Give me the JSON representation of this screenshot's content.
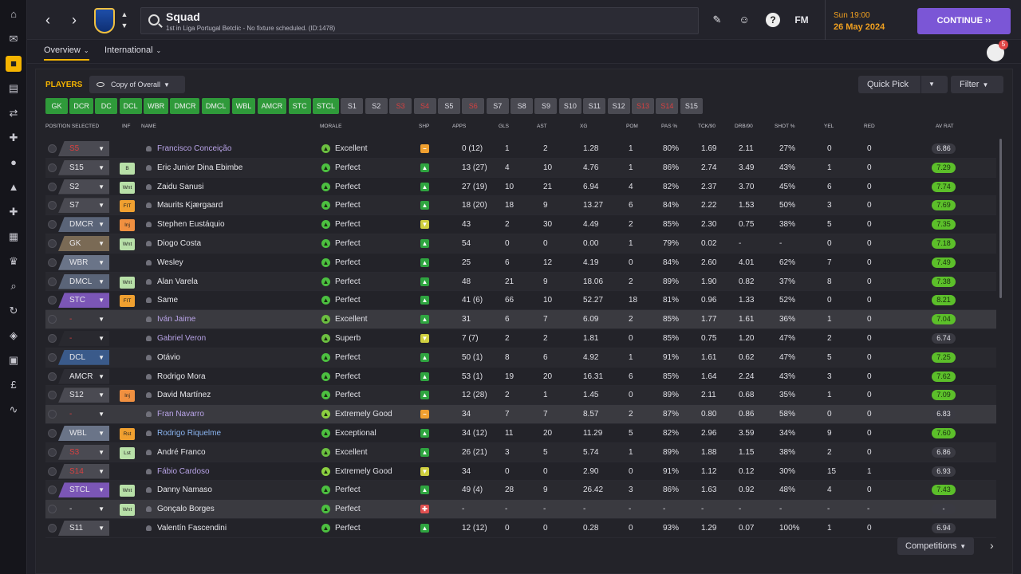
{
  "sidebar": {
    "items": [
      "home-icon",
      "inbox-icon",
      "club-icon",
      "clipboard-icon",
      "transfer-icon",
      "medical-icon",
      "ball-icon",
      "training-icon",
      "firstaid-icon",
      "calendar-icon",
      "trophy-icon",
      "search-icon",
      "refresh-icon",
      "shield-icon",
      "briefcase-icon",
      "finance-icon",
      "chart-icon"
    ]
  },
  "header": {
    "title": "Squad",
    "subtitle": "1st in Liga Portugal Betclic - No fixture scheduled. (ID:1478)",
    "date_time": "Sun 19:00",
    "date": "26 May 2024",
    "continue_label": "CONTINUE",
    "fm_label": "FM",
    "help_label": "?"
  },
  "tabs": {
    "overview": "Overview",
    "international": "International"
  },
  "notifications_count": "5",
  "panel": {
    "title": "PLAYERS",
    "view_select": "Copy of Overall",
    "quick_pick": "Quick Pick",
    "filter": "Filter"
  },
  "position_chips": [
    {
      "label": "GK",
      "state": "g"
    },
    {
      "label": "DCR",
      "state": "g"
    },
    {
      "label": "DC",
      "state": "g"
    },
    {
      "label": "DCL",
      "state": "g"
    },
    {
      "label": "WBR",
      "state": "g"
    },
    {
      "label": "DMCR",
      "state": "g"
    },
    {
      "label": "DMCL",
      "state": "g"
    },
    {
      "label": "WBL",
      "state": "g"
    },
    {
      "label": "AMCR",
      "state": "g"
    },
    {
      "label": "STC",
      "state": "g"
    },
    {
      "label": "STCL",
      "state": "g"
    },
    {
      "label": "S1",
      "state": "x"
    },
    {
      "label": "S2",
      "state": "x"
    },
    {
      "label": "S3",
      "state": "r"
    },
    {
      "label": "S4",
      "state": "r"
    },
    {
      "label": "S5",
      "state": "x"
    },
    {
      "label": "S6",
      "state": "r"
    },
    {
      "label": "S7",
      "state": "x"
    },
    {
      "label": "S8",
      "state": "x"
    },
    {
      "label": "S9",
      "state": "x"
    },
    {
      "label": "S10",
      "state": "x"
    },
    {
      "label": "S11",
      "state": "x"
    },
    {
      "label": "S12",
      "state": "x"
    },
    {
      "label": "S13",
      "state": "r"
    },
    {
      "label": "S14",
      "state": "r"
    },
    {
      "label": "S15",
      "state": "x"
    }
  ],
  "columns": [
    "POSITION SELECTED",
    "INF",
    "NAME",
    "MORALE",
    "SHP",
    "APPS",
    "GLS",
    "AST",
    "XG",
    "POM",
    "PAS %",
    "TCK/90",
    "DRB/90",
    "SHOT %",
    "YEL",
    "RED",
    "AV RAT"
  ],
  "players": [
    {
      "pos": "S5",
      "pos_color": "#4a4a52",
      "pos_red": true,
      "inf": "",
      "name": "Francisco Conceição",
      "name_color": "#b9a4e8",
      "morale": "Excellent",
      "shp": "orange",
      "apps": "0 (12)",
      "gls": "1",
      "ast": "2",
      "xg": "1.28",
      "pom": "1",
      "pas": "80%",
      "tck": "1.69",
      "drb": "2.11",
      "shot": "27%",
      "yel": "0",
      "red": "0",
      "av": "6.86",
      "av_green": false,
      "alt": false
    },
    {
      "pos": "S15",
      "pos_color": "#4a4a52",
      "pos_red": false,
      "inf": "B",
      "name": "Eric Junior Dina Ebimbe",
      "name_color": "#e6e6ea",
      "morale": "Perfect",
      "shp": "green-up",
      "apps": "13 (27)",
      "gls": "4",
      "ast": "10",
      "xg": "4.76",
      "pom": "1",
      "pas": "86%",
      "tck": "2.74",
      "drb": "3.49",
      "shot": "43%",
      "yel": "1",
      "red": "0",
      "av": "7.29",
      "av_green": true,
      "alt": true
    },
    {
      "pos": "S2",
      "pos_color": "#4a4a52",
      "pos_red": false,
      "inf": "Wnt",
      "name": "Zaidu Sanusi",
      "name_color": "#e6e6ea",
      "morale": "Perfect",
      "shp": "green-up",
      "apps": "27 (19)",
      "gls": "10",
      "ast": "21",
      "xg": "6.94",
      "pom": "4",
      "pas": "82%",
      "tck": "2.37",
      "drb": "3.70",
      "shot": "45%",
      "yel": "6",
      "red": "0",
      "av": "7.74",
      "av_green": true,
      "alt": false
    },
    {
      "pos": "S7",
      "pos_color": "#4a4a52",
      "pos_red": false,
      "inf": "FIT",
      "name": "Maurits Kjærgaard",
      "name_color": "#e6e6ea",
      "morale": "Perfect",
      "shp": "green-up",
      "apps": "18 (20)",
      "gls": "18",
      "ast": "9",
      "xg": "13.27",
      "pom": "6",
      "pas": "84%",
      "tck": "2.22",
      "drb": "1.53",
      "shot": "50%",
      "yel": "3",
      "red": "0",
      "av": "7.69",
      "av_green": true,
      "alt": true
    },
    {
      "pos": "DMCR",
      "pos_color": "#5a6478",
      "pos_red": false,
      "inf": "Inj",
      "name": "Stephen Eustáquio",
      "name_color": "#e6e6ea",
      "morale": "Perfect",
      "shp": "yellow",
      "apps": "43",
      "gls": "2",
      "ast": "30",
      "xg": "4.49",
      "pom": "2",
      "pas": "85%",
      "tck": "2.30",
      "drb": "0.75",
      "shot": "38%",
      "yel": "5",
      "red": "0",
      "av": "7.35",
      "av_green": true,
      "alt": false
    },
    {
      "pos": "GK",
      "pos_color": "#7a6a55",
      "pos_red": false,
      "inf": "Wnt",
      "name": "Diogo Costa",
      "name_color": "#e6e6ea",
      "morale": "Perfect",
      "shp": "green-up",
      "apps": "54",
      "gls": "0",
      "ast": "0",
      "xg": "0.00",
      "pom": "1",
      "pas": "79%",
      "tck": "0.02",
      "drb": "-",
      "shot": "-",
      "yel": "0",
      "red": "0",
      "av": "7.18",
      "av_green": true,
      "alt": true
    },
    {
      "pos": "WBR",
      "pos_color": "#6a7488",
      "pos_red": false,
      "inf": "",
      "name": "Wesley",
      "name_color": "#e6e6ea",
      "morale": "Perfect",
      "shp": "green-up",
      "apps": "25",
      "gls": "6",
      "ast": "12",
      "xg": "4.19",
      "pom": "0",
      "pas": "84%",
      "tck": "2.60",
      "drb": "4.01",
      "shot": "62%",
      "yel": "7",
      "red": "0",
      "av": "7.49",
      "av_green": true,
      "alt": false
    },
    {
      "pos": "DMCL",
      "pos_color": "#5a6478",
      "pos_red": false,
      "inf": "Wnt",
      "name": "Alan Varela",
      "name_color": "#e6e6ea",
      "morale": "Perfect",
      "shp": "green-up",
      "apps": "48",
      "gls": "21",
      "ast": "9",
      "xg": "18.06",
      "pom": "2",
      "pas": "89%",
      "tck": "1.90",
      "drb": "0.82",
      "shot": "37%",
      "yel": "8",
      "red": "0",
      "av": "7.38",
      "av_green": true,
      "alt": true
    },
    {
      "pos": "STC",
      "pos_color": "#7b56b6",
      "pos_red": false,
      "inf": "FIT",
      "name": "Same",
      "name_color": "#e6e6ea",
      "morale": "Perfect",
      "shp": "green-up",
      "apps": "41 (6)",
      "gls": "66",
      "ast": "10",
      "xg": "52.27",
      "pom": "18",
      "pas": "81%",
      "tck": "0.96",
      "drb": "1.33",
      "shot": "52%",
      "yel": "0",
      "red": "0",
      "av": "8.21",
      "av_green": true,
      "alt": false
    },
    {
      "pos": "-",
      "pos_color": "#3a3a40",
      "pos_red": true,
      "inf": "",
      "name": "Iván Jaime",
      "name_color": "#b9a4e8",
      "morale": "Excellent",
      "shp": "green-up",
      "apps": "31",
      "gls": "6",
      "ast": "7",
      "xg": "6.09",
      "pom": "2",
      "pas": "85%",
      "tck": "1.77",
      "drb": "1.61",
      "shot": "36%",
      "yel": "1",
      "red": "0",
      "av": "7.04",
      "av_green": true,
      "alt": "hl"
    },
    {
      "pos": "-",
      "pos_color": "#29292f",
      "pos_red": true,
      "inf": "",
      "name": "Gabriel Veron",
      "name_color": "#b9a4e8",
      "morale": "Superb",
      "shp": "yellow",
      "apps": "7 (7)",
      "gls": "2",
      "ast": "2",
      "xg": "1.81",
      "pom": "0",
      "pas": "85%",
      "tck": "0.75",
      "drb": "1.20",
      "shot": "47%",
      "yel": "2",
      "red": "0",
      "av": "6.74",
      "av_green": false,
      "alt": false
    },
    {
      "pos": "DCL",
      "pos_color": "#3a5a8a",
      "pos_red": false,
      "inf": "",
      "name": "Otávio",
      "name_color": "#e6e6ea",
      "morale": "Perfect",
      "shp": "green-up",
      "apps": "50 (1)",
      "gls": "8",
      "ast": "6",
      "xg": "4.92",
      "pom": "1",
      "pas": "91%",
      "tck": "1.61",
      "drb": "0.62",
      "shot": "47%",
      "yel": "5",
      "red": "0",
      "av": "7.25",
      "av_green": true,
      "alt": true
    },
    {
      "pos": "AMCR",
      "pos_color": "#2d2d34",
      "pos_red": false,
      "inf": "",
      "name": "Rodrigo Mora",
      "name_color": "#e6e6ea",
      "morale": "Perfect",
      "shp": "green-up",
      "apps": "53 (1)",
      "gls": "19",
      "ast": "20",
      "xg": "16.31",
      "pom": "6",
      "pas": "85%",
      "tck": "1.64",
      "drb": "2.24",
      "shot": "43%",
      "yel": "3",
      "red": "0",
      "av": "7.62",
      "av_green": true,
      "alt": false
    },
    {
      "pos": "S12",
      "pos_color": "#4a4a52",
      "pos_red": false,
      "inf": "Inj",
      "name": "David Martínez",
      "name_color": "#e6e6ea",
      "morale": "Perfect",
      "shp": "green-up",
      "apps": "12 (28)",
      "gls": "2",
      "ast": "1",
      "xg": "1.45",
      "pom": "0",
      "pas": "89%",
      "tck": "2.11",
      "drb": "0.68",
      "shot": "35%",
      "yel": "1",
      "red": "0",
      "av": "7.09",
      "av_green": true,
      "alt": true
    },
    {
      "pos": "-",
      "pos_color": "#3a3a40",
      "pos_red": true,
      "inf": "",
      "name": "Fran Navarro",
      "name_color": "#b9a4e8",
      "morale": "Extremely Good",
      "shp": "orange",
      "apps": "34",
      "gls": "7",
      "ast": "7",
      "xg": "8.57",
      "pom": "2",
      "pas": "87%",
      "tck": "0.80",
      "drb": "0.86",
      "shot": "58%",
      "yel": "0",
      "red": "0",
      "av": "6.83",
      "av_green": false,
      "alt": "hl"
    },
    {
      "pos": "WBL",
      "pos_color": "#6a7488",
      "pos_red": false,
      "inf": "Rst",
      "name": "Rodrigo Riquelme",
      "name_color": "#8ab4f0",
      "morale": "Exceptional",
      "shp": "green-up",
      "apps": "34 (12)",
      "gls": "11",
      "ast": "20",
      "xg": "11.29",
      "pom": "5",
      "pas": "82%",
      "tck": "2.96",
      "drb": "3.59",
      "shot": "34%",
      "yel": "9",
      "red": "0",
      "av": "7.60",
      "av_green": true,
      "alt": false
    },
    {
      "pos": "S3",
      "pos_color": "#4a4a52",
      "pos_red": true,
      "inf": "Lst",
      "name": "André Franco",
      "name_color": "#e6e6ea",
      "morale": "Excellent",
      "shp": "green-up",
      "apps": "26 (21)",
      "gls": "3",
      "ast": "5",
      "xg": "5.74",
      "pom": "1",
      "pas": "89%",
      "tck": "1.88",
      "drb": "1.15",
      "shot": "38%",
      "yel": "2",
      "red": "0",
      "av": "6.86",
      "av_green": false,
      "alt": true
    },
    {
      "pos": "S14",
      "pos_color": "#4a4a52",
      "pos_red": true,
      "inf": "",
      "name": "Fábio Cardoso",
      "name_color": "#b9a4e8",
      "morale": "Extremely Good",
      "shp": "yellow",
      "apps": "34",
      "gls": "0",
      "ast": "0",
      "xg": "2.90",
      "pom": "0",
      "pas": "91%",
      "tck": "1.12",
      "drb": "0.12",
      "shot": "30%",
      "yel": "15",
      "red": "1",
      "av": "6.93",
      "av_green": false,
      "alt": false
    },
    {
      "pos": "STCL",
      "pos_color": "#7b56b6",
      "pos_red": false,
      "inf": "Wnt",
      "name": "Danny Namaso",
      "name_color": "#e6e6ea",
      "morale": "Perfect",
      "shp": "green-up",
      "apps": "49 (4)",
      "gls": "28",
      "ast": "9",
      "xg": "26.42",
      "pom": "3",
      "pas": "86%",
      "tck": "1.63",
      "drb": "0.92",
      "shot": "48%",
      "yel": "4",
      "red": "0",
      "av": "7.43",
      "av_green": true,
      "alt": true
    },
    {
      "pos": "-",
      "pos_color": "#3a3a40",
      "pos_red": false,
      "inf": "Wnt",
      "name": "Gonçalo Borges",
      "name_color": "#e6e6ea",
      "morale": "Perfect",
      "shp": "red",
      "apps": "-",
      "gls": "-",
      "ast": "-",
      "xg": "-",
      "pom": "-",
      "pas": "-",
      "tck": "-",
      "drb": "-",
      "shot": "-",
      "yel": "-",
      "red": "-",
      "av": "-",
      "av_green": false,
      "alt": "hl"
    },
    {
      "pos": "S11",
      "pos_color": "#4a4a52",
      "pos_red": false,
      "inf": "",
      "name": "Valentín Fascendini",
      "name_color": "#e6e6ea",
      "morale": "Perfect",
      "shp": "green-up",
      "apps": "12 (12)",
      "gls": "0",
      "ast": "0",
      "xg": "0.28",
      "pom": "0",
      "pas": "93%",
      "tck": "1.29",
      "drb": "0.07",
      "shot": "100%",
      "yel": "1",
      "red": "0",
      "av": "6.94",
      "av_green": false,
      "alt": false
    }
  ],
  "footer": {
    "competitions": "Competitions"
  },
  "colors": {
    "accent": "#f5b400",
    "continue_bg": "#7b56d6",
    "green": "#2f9a3a",
    "av_green": "#5cbf2a",
    "red": "#d84040"
  }
}
